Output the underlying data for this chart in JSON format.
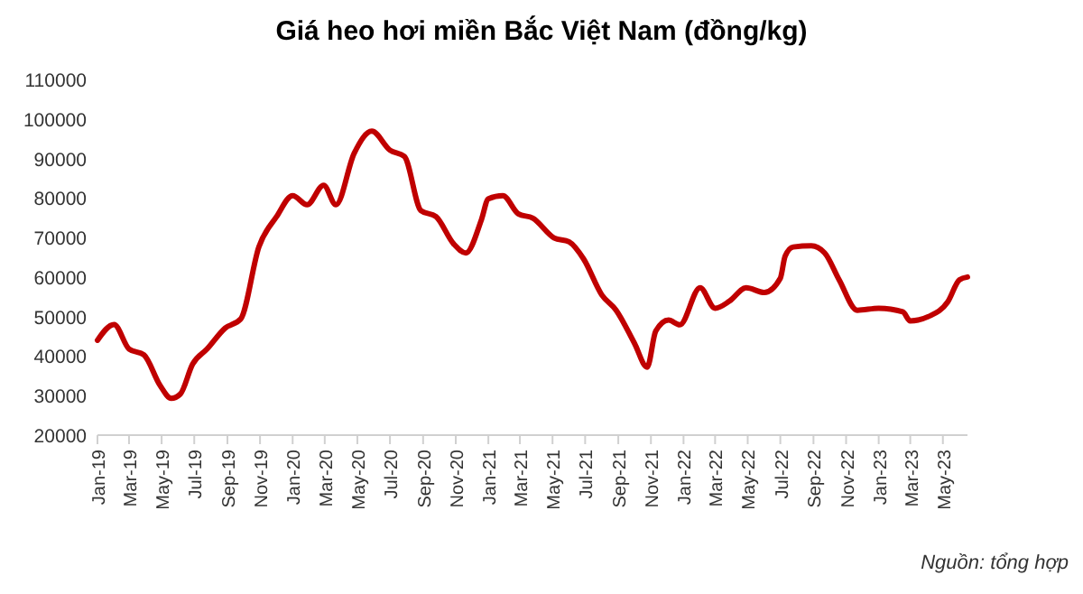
{
  "chart_data": {
    "type": "line",
    "title": "Giá heo hơi miền Bắc Việt Nam (đồng/kg)",
    "annotations": [
      "Nguồn: tổng hợp"
    ],
    "x": [
      "2019-01-01",
      "2019-02-01",
      "2019-03-01",
      "2019-03-29",
      "2019-04-28",
      "2019-05-19",
      "2019-06-05",
      "2019-06-28",
      "2019-07-25",
      "2019-08-28",
      "2019-09-26",
      "2019-10-30",
      "2019-12-02",
      "2020-01-01",
      "2020-01-28",
      "2020-02-28",
      "2020-03-22",
      "2020-04-25",
      "2020-05-28",
      "2020-07-01",
      "2020-07-28",
      "2020-08-28",
      "2020-09-25",
      "2020-10-28",
      "2020-11-20",
      "2020-12-19",
      "2021-01-01",
      "2021-01-28",
      "2021-02-26",
      "2021-03-25",
      "2021-05-04",
      "2021-06-01",
      "2021-06-28",
      "2021-08-01",
      "2021-08-28",
      "2021-10-01",
      "2021-10-25",
      "2021-11-10",
      "2021-12-04",
      "2021-12-25",
      "2022-02-01",
      "2022-03-01",
      "2022-03-28",
      "2022-04-28",
      "2022-06-01",
      "2022-07-01",
      "2022-07-10",
      "2022-07-25",
      "2022-08-28",
      "2022-09-22",
      "2022-10-19",
      "2022-11-22",
      "2023-01-01",
      "2023-02-15",
      "2023-03-01",
      "2023-04-04",
      "2023-05-10",
      "2023-06-01",
      "2023-06-16"
    ],
    "series": [
      {
        "color": "#c00000",
        "values": [
          44000,
          48000,
          41800,
          40300,
          32600,
          29300,
          30400,
          38000,
          41800,
          47100,
          49400,
          67700,
          75300,
          80600,
          78300,
          83200,
          78300,
          91300,
          96900,
          92100,
          90500,
          76800,
          75300,
          68400,
          66100,
          74500,
          79800,
          80600,
          76000,
          74900,
          69900,
          68900,
          64600,
          55500,
          51600,
          43300,
          37200,
          46300,
          49100,
          47900,
          57300,
          52100,
          53900,
          57300,
          56100,
          59700,
          65300,
          67600,
          67900,
          66100,
          59300,
          51600,
          52100,
          51200,
          48900,
          50000,
          53700,
          59300,
          60000
        ]
      }
    ],
    "xlim": [
      "2019-01-01",
      "2023-06-16"
    ],
    "xticks": [
      {
        "value": "2019-01-01",
        "label": "Jan-19"
      },
      {
        "value": "2019-03-01",
        "label": "Mar-19"
      },
      {
        "value": "2019-05-01",
        "label": "May-19"
      },
      {
        "value": "2019-07-01",
        "label": "Jul-19"
      },
      {
        "value": "2019-09-01",
        "label": "Sep-19"
      },
      {
        "value": "2019-11-01",
        "label": "Nov-19"
      },
      {
        "value": "2020-01-01",
        "label": "Jan-20"
      },
      {
        "value": "2020-03-01",
        "label": "Mar-20"
      },
      {
        "value": "2020-05-01",
        "label": "May-20"
      },
      {
        "value": "2020-07-01",
        "label": "Jul-20"
      },
      {
        "value": "2020-09-01",
        "label": "Sep-20"
      },
      {
        "value": "2020-11-01",
        "label": "Nov-20"
      },
      {
        "value": "2021-01-01",
        "label": "Jan-21"
      },
      {
        "value": "2021-03-01",
        "label": "Mar-21"
      },
      {
        "value": "2021-05-01",
        "label": "May-21"
      },
      {
        "value": "2021-07-01",
        "label": "Jul-21"
      },
      {
        "value": "2021-09-01",
        "label": "Sep-21"
      },
      {
        "value": "2021-11-01",
        "label": "Nov-21"
      },
      {
        "value": "2022-01-01",
        "label": "Jan-22"
      },
      {
        "value": "2022-03-01",
        "label": "Mar-22"
      },
      {
        "value": "2022-05-01",
        "label": "May-22"
      },
      {
        "value": "2022-07-01",
        "label": "Jul-22"
      },
      {
        "value": "2022-09-01",
        "label": "Sep-22"
      },
      {
        "value": "2022-11-01",
        "label": "Nov-22"
      },
      {
        "value": "2023-01-01",
        "label": "Jan-23"
      },
      {
        "value": "2023-03-01",
        "label": "Mar-23"
      },
      {
        "value": "2023-05-01",
        "label": "May-23"
      }
    ],
    "ylim": [
      20000,
      110000
    ],
    "yticks": [
      20000,
      30000,
      40000,
      50000,
      60000,
      70000,
      80000,
      90000,
      100000,
      110000
    ],
    "grid": false,
    "marker": "none",
    "line_style": "solid"
  }
}
